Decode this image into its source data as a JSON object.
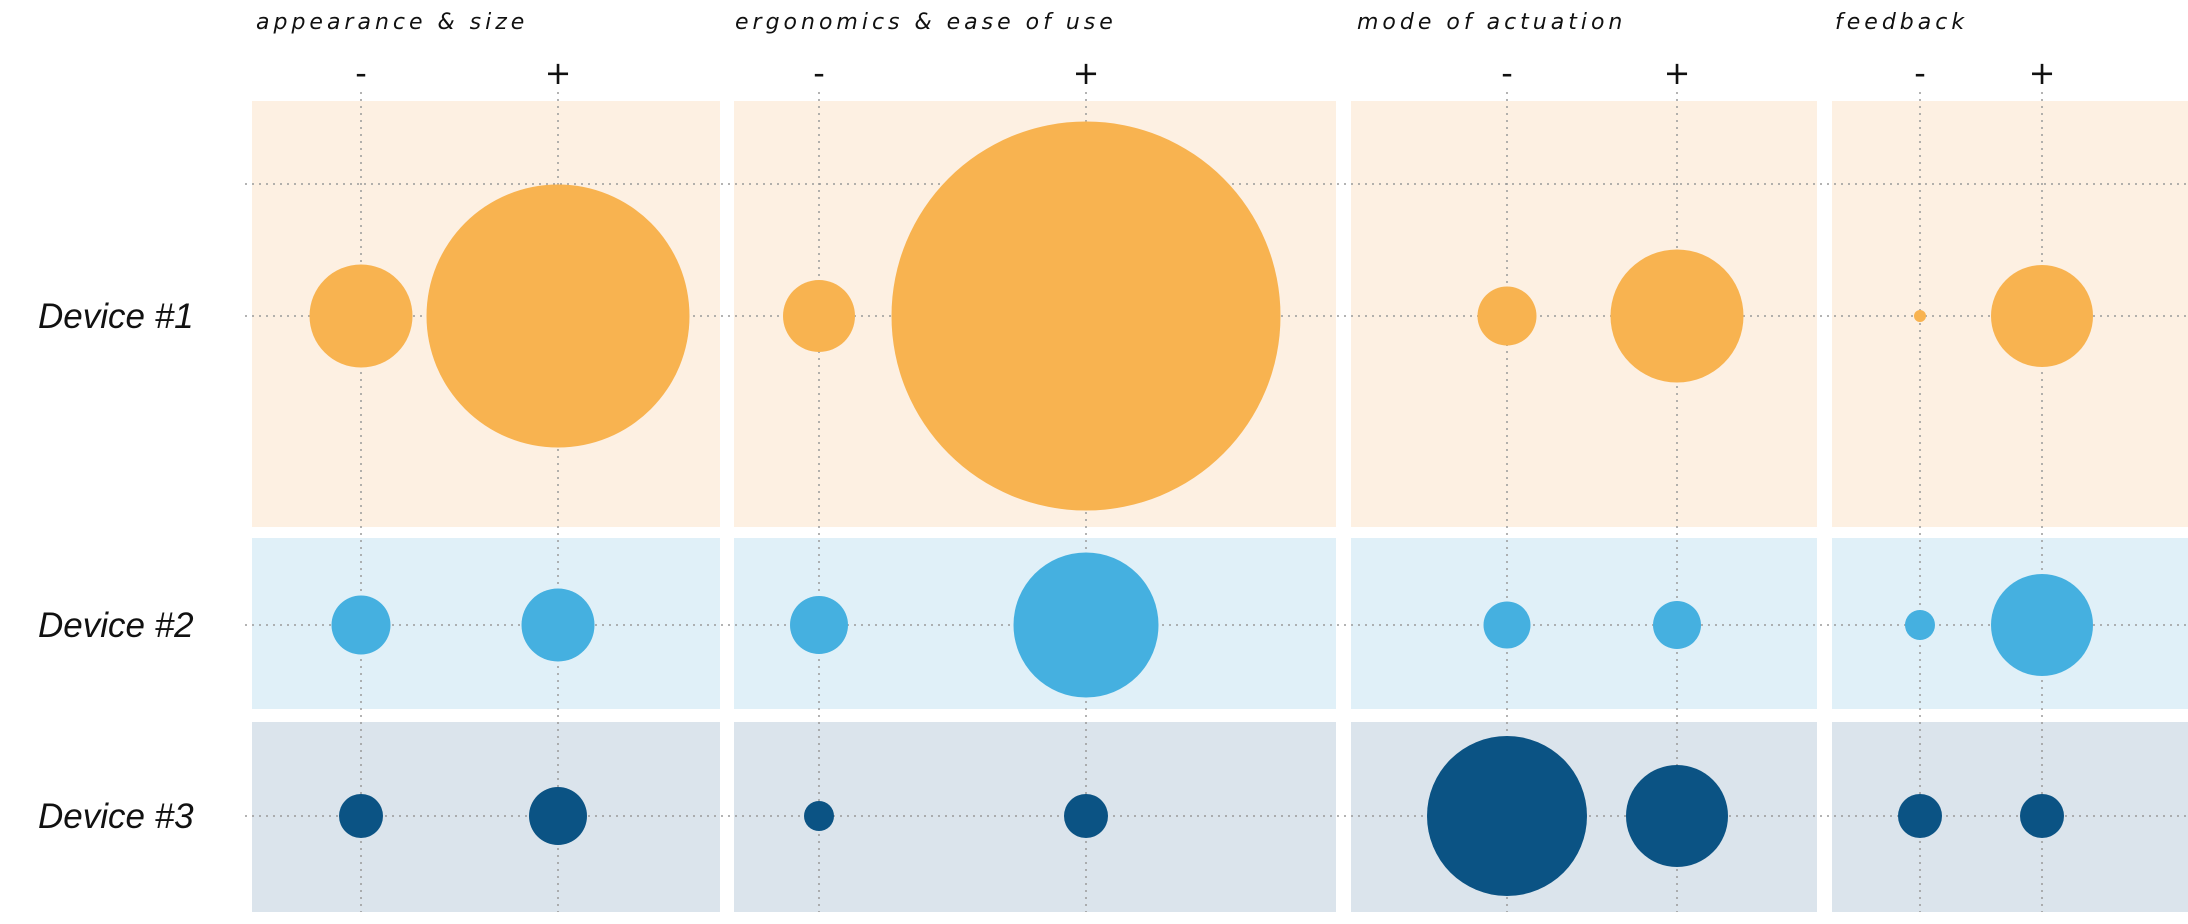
{
  "chart_data": {
    "type": "bubble",
    "categories": [
      "appearance & size",
      "ergonomics & ease of use",
      "mode of actuation",
      "feedback"
    ],
    "sides": [
      "-",
      "+"
    ],
    "size_unit": "relative bubble diameter",
    "series": [
      {
        "name": "Device #1",
        "color": "#f8b350",
        "band_color": "#fdf0e2",
        "values": [
          [
            103,
            263
          ],
          [
            72,
            389
          ],
          [
            59,
            133
          ],
          [
            12,
            102
          ]
        ]
      },
      {
        "name": "Device #2",
        "color": "#45b0e0",
        "band_color": "#e0f0f8",
        "values": [
          [
            59,
            73
          ],
          [
            58,
            145
          ],
          [
            47,
            48
          ],
          [
            30,
            102
          ]
        ]
      },
      {
        "name": "Device #3",
        "color": "#0b5384",
        "band_color": "#dbe4ec",
        "values": [
          [
            44,
            58
          ],
          [
            30,
            44
          ],
          [
            160,
            102
          ],
          [
            44,
            44
          ]
        ]
      }
    ]
  }
}
